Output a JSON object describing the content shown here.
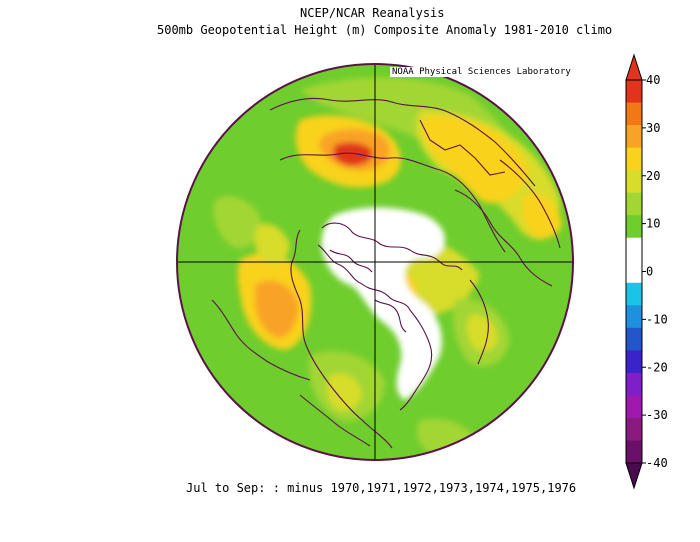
{
  "title": "NCEP/NCAR Reanalysis",
  "subtitle": "500mb Geopotential Height (m) Composite Anomaly 1981-2010 climo",
  "credit": "NOAA Physical Sciences Laboratory",
  "footer": "Jul to Sep: :  minus 1970,1971,1972,1973,1974,1975,1976",
  "colorbar": {
    "labels": [
      "40",
      "30",
      "20",
      "10",
      "0",
      "-10",
      "-20",
      "-30",
      "-40"
    ],
    "colors": [
      "#e0341c",
      "#f07816",
      "#f9a326",
      "#f9d21f",
      "#d8dc2a",
      "#a2d635",
      "#6fcd2d",
      "#ffffff",
      "#ffffff",
      "#1bc4e6",
      "#1e90dc",
      "#2356c8",
      "#3a23c8",
      "#7e1fc8",
      "#a018b0",
      "#8a1a7e",
      "#6a1068"
    ],
    "top_arrow_color": "#e0341c",
    "bottom_arrow_color": "#4a0a50"
  },
  "map": {
    "background_color": "#6fcd2d",
    "boundary_color": "#5a1248"
  }
}
